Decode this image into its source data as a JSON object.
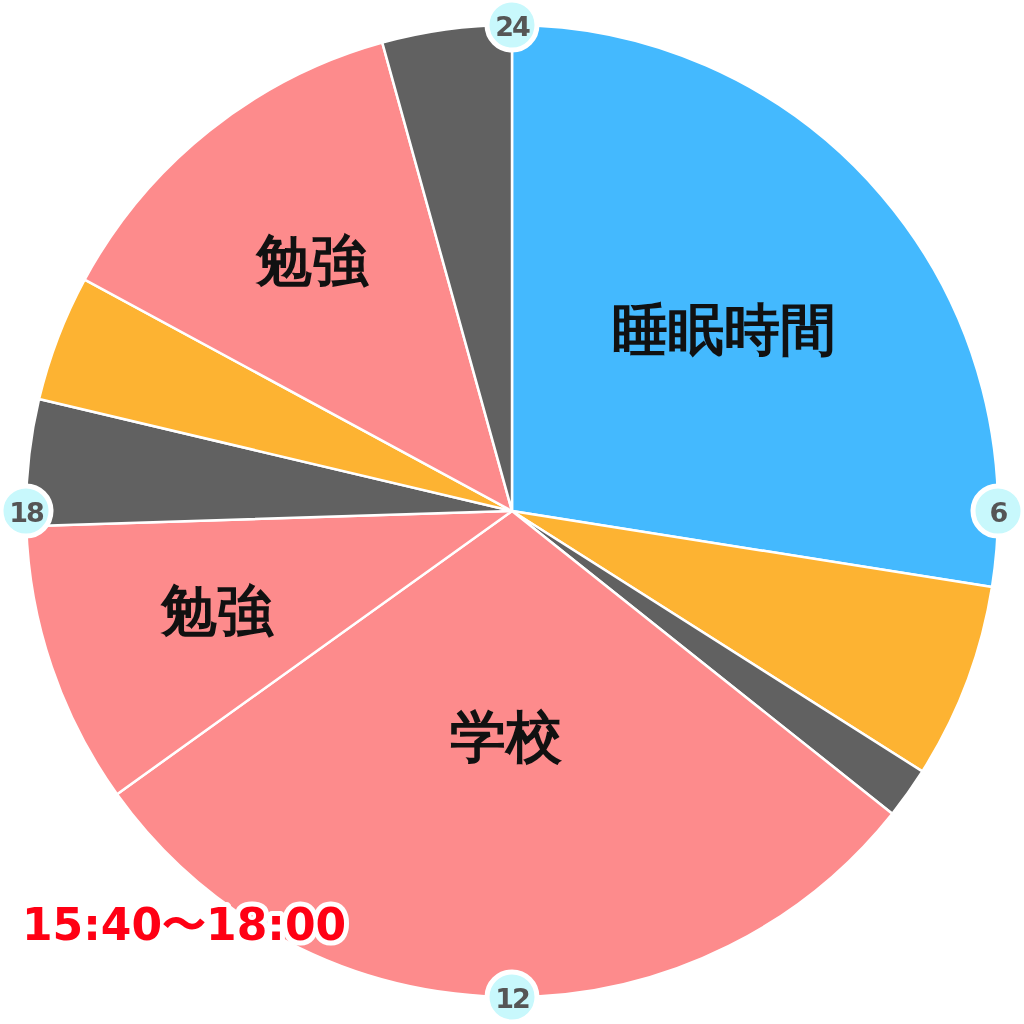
{
  "chart_data": {
    "type": "pie",
    "categories": [
      "睡眠時間",
      null,
      null,
      "学校",
      "勉強",
      null,
      null,
      "勉強",
      null
    ],
    "values": [
      27.5,
      6.5,
      1.7,
      29.4,
      9.4,
      4.2,
      4.2,
      12.8,
      4.3
    ],
    "colors": [
      "#44b9fe",
      "#fdb332",
      "#616161",
      "#fd8b8c",
      "#fd8b8c",
      "#616161",
      "#fdb332",
      "#fd8b8c",
      "#616161"
    ],
    "annotations": [
      "24",
      "6",
      "12",
      "18",
      "15:40〜18:00"
    ]
  }
}
